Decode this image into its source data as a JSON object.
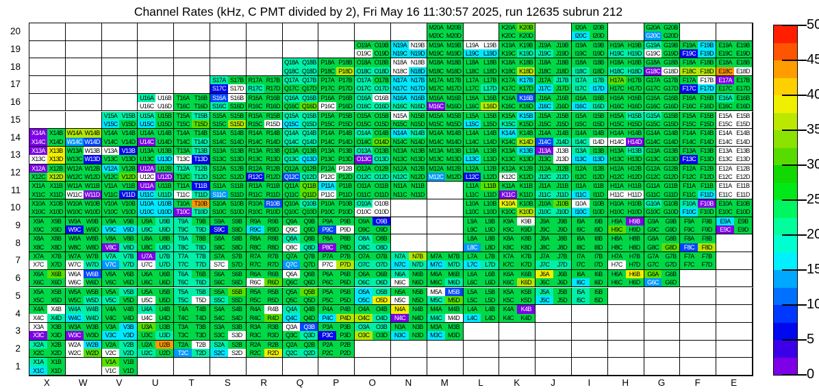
{
  "title": "Channel Rates (kHz, C PMT divided by 2), Fri May 16 11:30:57 2025, run 12635 subrun 212",
  "chart_data": {
    "type": "heatmap",
    "title": "Channel Rates (kHz, C PMT divided by 2), Fri May 16 11:30:57 2025, run 12635 subrun 212",
    "units": "kHz",
    "x_categories": [
      "X",
      "W",
      "V",
      "U",
      "T",
      "S",
      "R",
      "Q",
      "P",
      "O",
      "N",
      "M",
      "L",
      "K",
      "J",
      "I",
      "H",
      "G",
      "F",
      "E"
    ],
    "y_categories": [
      "20",
      "19",
      "18",
      "17",
      "16",
      "15",
      "14",
      "13",
      "12",
      "11",
      "10",
      "9",
      "8",
      "7",
      "6",
      "5",
      "4",
      "3",
      "2",
      "1"
    ],
    "sub_channels": [
      "A",
      "B",
      "C",
      "D"
    ],
    "sub_layout": "A top-left, B top-right, C bottom-left, D bottom-right",
    "missing_code": "....",
    "white_text_codes": [
      "p",
      "B",
      "b",
      "l"
    ],
    "palette": {
      "p": {
        "color": "#7d00e6",
        "approx_khz": 1
      },
      "B": {
        "color": "#0008f0",
        "approx_khz": 6
      },
      "b": {
        "color": "#0048ff",
        "approx_khz": 9
      },
      "l": {
        "color": "#0098ff",
        "approx_khz": 13
      },
      "c": {
        "color": "#00e8ff",
        "approx_khz": 16
      },
      "t": {
        "color": "#00f0a8",
        "approx_khz": 21
      },
      "g": {
        "color": "#00d848",
        "approx_khz": 27
      },
      "G": {
        "color": "#58e000",
        "approx_khz": 32
      },
      "Y": {
        "color": "#b4e800",
        "approx_khz": 36
      },
      "y": {
        "color": "#f0f000",
        "approx_khz": 39
      },
      "o": {
        "color": "#ff9800",
        "approx_khz": 44
      },
      "w": {
        "color": "#ffffff",
        "approx_khz": null
      }
    },
    "colorbar": {
      "min": 0,
      "max": 50,
      "ticks": [
        0,
        5,
        10,
        15,
        20,
        25,
        30,
        35,
        40,
        45,
        50
      ],
      "gradient_bottom_to_top": [
        "#7d00e6",
        "#3c00e8",
        "#0008f0",
        "#0038ff",
        "#0070ff",
        "#00a8ff",
        "#00f0ff",
        "#00ffd0",
        "#00ff9c",
        "#00f660",
        "#00e818",
        "#10d800",
        "#58dc00",
        "#8ce200",
        "#bce800",
        "#eef000",
        "#ffd000",
        "#ff9c00",
        "#ff5400",
        "#ff1e00"
      ]
    },
    "rows": [
      {
        "n": "20",
        "cols": [
          "....",
          "....",
          "....",
          "....",
          "....",
          "....",
          "....",
          "....",
          "....",
          "....",
          "....",
          "gggg",
          "....",
          "gGgg",
          "....",
          "ggcg",
          "....",
          "gglg",
          "....",
          "...."
        ]
      },
      {
        "n": "19",
        "cols": [
          "....",
          "....",
          "....",
          "....",
          "....",
          "....",
          "....",
          "....",
          "....",
          "ggwg",
          "cwcc",
          "gggg",
          "wwcc",
          "gggt",
          "ggtg",
          "gggg",
          "ggtt",
          "tgwg",
          "gcBc",
          "gggg"
        ]
      },
      {
        "n": "18",
        "cols": [
          "....",
          "....",
          "....",
          "....",
          "....",
          "....",
          "....",
          "tttt",
          "gggY",
          "ggtt",
          "wwwc",
          "gggg",
          "gggg",
          "gggY",
          "gggg",
          "ggtg",
          "ggtt",
          "ggpw",
          "ggYY",
          "ggow"
        ]
      },
      {
        "n": "17",
        "cols": [
          "....",
          "....",
          "....",
          "....",
          "....",
          "tgBw",
          "ggtg",
          "ttgg",
          "gggg",
          "tgtt",
          "cccc",
          "gggg",
          "gggt",
          "gcgg",
          "gtcg",
          "tttc",
          "Gggg",
          "gggg",
          "gwBc",
          "pggg"
        ]
      },
      {
        "n": "16",
        "cols": [
          "....",
          "....",
          "....",
          "twww",
          "gggg",
          "bwtg",
          "gggg",
          "ttgG",
          "ggwg",
          "twtt",
          "cctt",
          "ggpg",
          "gggY",
          "gbgg",
          "ggcg",
          "ggct",
          "gggg",
          "gggg",
          "gggg",
          "tggg"
        ]
      },
      {
        "n": "15",
        "cols": [
          "....",
          "....",
          "ttcg",
          "tgcg",
          "gtgG",
          "gggY",
          "gggw",
          "ttct",
          "gggg",
          "gggg",
          "wggg",
          "gggg",
          "ggcg",
          "gctg",
          "gggg",
          "gggg",
          "gtgg",
          "tggg",
          "gggg",
          "wwww"
        ]
      },
      {
        "n": "14",
        "cols": [
          "pgpg",
          "YYlb",
          "gggg",
          "ggpg",
          "gggt",
          "gggg",
          "gggg",
          "tttt",
          "gggg",
          "tggG",
          "ctgg",
          "gggg",
          "gggg",
          "cggY",
          "ggbt",
          "ggtw",
          "ggwp",
          "gggg",
          "gggg",
          "wwww"
        ]
      },
      {
        "n": "13",
        "cols": [
          "pywy",
          "gwgB",
          "wBgg",
          "gggc",
          "gtwB",
          "gggg",
          "gggg",
          "ggtc",
          "gggg",
          "tgpt",
          "gggg",
          "gggg",
          "ggcg",
          "gcgg",
          "pwgw",
          "tgcc",
          "gtgg",
          "gggg",
          "ggBg",
          "wwww"
        ]
      },
      {
        "n": "12",
        "cols": [
          "pggY",
          "gggg",
          "cggG",
          "pgwp",
          "ttgt",
          "gggg",
          "ggBg",
          "ggbt",
          "gwwg",
          "ggtt",
          "ggtg",
          "gglg",
          "ggBg",
          "ggwg",
          "ggtt",
          "gggg",
          "gggg",
          "gggg",
          "gggg",
          "wwww"
        ]
      },
      {
        "n": "11",
        "cols": [
          "gggg",
          "ggwp",
          "gggB",
          "pgct",
          "gBwt",
          "gglg",
          "gggg",
          "gGgG",
          "cgwg",
          "gggg",
          "gggg",
          "....",
          "gGgg",
          "ggpg",
          "ggtt",
          "ggcg",
          "ggww",
          "gggg",
          "gggc",
          "wwww"
        ]
      },
      {
        "n": "10",
        "cols": [
          "gggg",
          "gggg",
          "gggg",
          "cccc",
          "gopt",
          "gggg",
          "gbgg",
          "gtgg",
          "gggg",
          "twww",
          "....",
          "....",
          "gggg",
          "yggY",
          "gGtt",
          "wgcg",
          "gggg",
          "tggg",
          "tpcg",
          "gggg"
        ]
      },
      {
        "n": "9",
        "cols": [
          "gggg",
          "ggBg",
          "ggcc",
          "gttt",
          "tgtt",
          "ggBg",
          "ggcg",
          "ggwg",
          "ggbw",
          "gBgg",
          "....",
          "....",
          "gggg",
          "gwgg",
          "gggg",
          "gggg",
          "gpGg",
          "gggg",
          "gggg",
          "cgpg"
        ]
      },
      {
        "n": "8",
        "cols": [
          "gggg",
          "gggg",
          "ggpt",
          "gggt",
          "tgtt",
          "gggg",
          "gggg",
          "tgwt",
          "ggpg",
          "tgtt",
          "....",
          "....",
          "gglg",
          "gggg",
          "gggg",
          "gggg",
          "gggg",
          "gggG",
          "ggbY",
          "...."
        ]
      },
      {
        "n": "7",
        "cols": [
          "ggwg",
          "ggwt",
          "ttlt",
          "ptwt",
          "tttt",
          "ggwg",
          "gggg",
          "gglg",
          "ggwY",
          "ggtt",
          "tYct",
          "ggct",
          "ggct",
          "gggg",
          "ggtt",
          "gggg",
          "ggwg",
          "gggg",
          "gggg",
          "...."
        ]
      },
      {
        "n": "6",
        "cols": [
          "gGgg",
          "wbwg",
          "gggg",
          "gggg",
          "tgtt",
          "gggg",
          "ggwG",
          "wggg",
          "gggg",
          "ggtt",
          "tgwg",
          "gggt",
          "gggg",
          "gggY",
          "yggg",
          "ggcg",
          "gygg",
          "Gglg",
          "....",
          "...."
        ]
      },
      {
        "n": "5",
        "cols": [
          "gggg",
          "gggt",
          "gttg",
          "ggwg",
          "tttw",
          "gGtg",
          "gggg",
          "gGgg",
          "gggg",
          "ctcy",
          "ggwg",
          "wbtG",
          "gggg",
          "gggg",
          "tgcg",
          "tgtg",
          "....",
          "....",
          "....",
          "...."
        ]
      },
      {
        "n": "4",
        "cols": [
          "gwwt",
          "ttct",
          "gggg",
          "tgwg",
          "gggg",
          "gggg",
          "gwgG",
          "tgcg",
          "ggcY",
          "ggYt",
          "ygpg",
          "ggtw",
          "ggcg",
          "gpgg",
          "....",
          "....",
          "....",
          "....",
          "....",
          "...."
        ]
      },
      {
        "n": "3",
        "cols": [
          "wgpg",
          "ggpg",
          "gccc",
          "Gggt",
          "gggg",
          "gggw",
          "gggg",
          "wbgt",
          "ggBg",
          "ttYg",
          "ggcg",
          "ggcg",
          "....",
          "....",
          "....",
          "....",
          "....",
          "....",
          "....",
          "...."
        ]
      },
      {
        "n": "2",
        "cols": [
          "tggg",
          "wcwG",
          "gtwt",
          "gotg",
          "gwlt",
          "tgcw",
          "gggy",
          "ggtt",
          "gggg",
          "....",
          "....",
          "....",
          "....",
          "....",
          "....",
          "....",
          "....",
          "....",
          "....",
          "...."
        ]
      },
      {
        "n": "1",
        "cols": [
          "tgcg",
          "....",
          "Ggwg",
          "....",
          "....",
          "....",
          "....",
          "....",
          "....",
          "....",
          "....",
          "....",
          "....",
          "....",
          "....",
          "....",
          "....",
          "....",
          "....",
          "...."
        ]
      }
    ]
  }
}
